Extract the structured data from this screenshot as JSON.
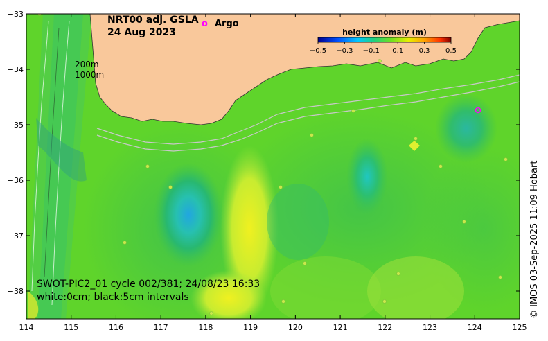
{
  "map": {
    "title": "NRT00 adj. GSLA",
    "date": "24 Aug 2023",
    "argo_legend_symbol": "o",
    "argo_legend_label": "Argo",
    "contour_label_200m": "200m",
    "contour_label_1000m": "1000m",
    "swath_info_line1": "SWOT-PIC2_01 cycle 002/381; 24/08/23 16:33",
    "swath_info_line2": "white:0cm; black:5cm intervals",
    "credit": "© IMOS 03-Sep-2025 11:09 Hobart"
  },
  "colorbar": {
    "title": "height anomaly (m)",
    "tick_labels": [
      "−0.5",
      "−0.3",
      "−0.1",
      "0.1",
      "0.3",
      "0.5"
    ]
  },
  "axes": {
    "lon_labels": [
      "114",
      "115",
      "116",
      "117",
      "118",
      "119",
      "120",
      "121",
      "122",
      "123",
      "124",
      "125"
    ],
    "lat_labels": [
      "−33",
      "−34",
      "−35",
      "−36",
      "−37",
      "−38"
    ],
    "lon_range": [
      114,
      125
    ],
    "lat_range": [
      -38.5,
      -33
    ]
  },
  "colors": {
    "land": "#f9c89b",
    "ocean_base": "#5fd42b",
    "argo_marker": "#ff00ff"
  }
}
